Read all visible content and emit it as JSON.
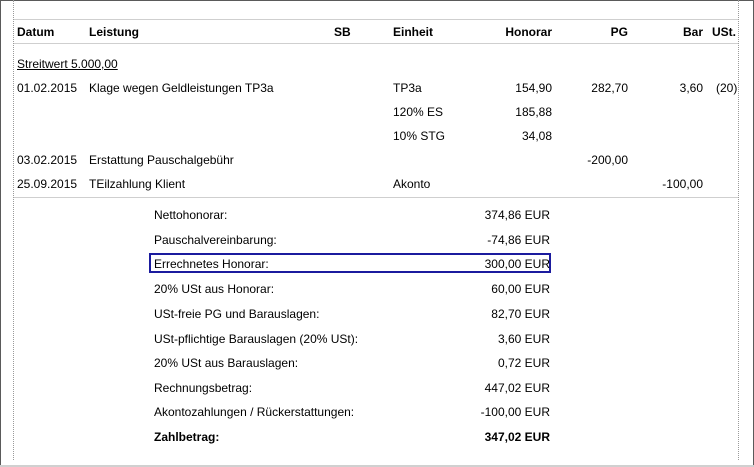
{
  "columns": {
    "datum": "Datum",
    "leistung": "Leistung",
    "sb": "SB",
    "einheit": "Einheit",
    "honorar": "Honorar",
    "pg": "PG",
    "bar": "Bar",
    "ust": "USt."
  },
  "streitwert": "Streitwert 5.000,00",
  "rows": [
    {
      "datum": "01.02.2015",
      "leistung": "Klage wegen Geldleistungen TP3a",
      "einheit": "TP3a",
      "honorar": "154,90",
      "pg": "282,70",
      "bar": "3,60",
      "ust": "(20)"
    },
    {
      "datum": "",
      "leistung": "",
      "einheit": "120% ES",
      "honorar": "185,88",
      "pg": "",
      "bar": "",
      "ust": ""
    },
    {
      "datum": "",
      "leistung": "",
      "einheit": "10% STG",
      "honorar": "34,08",
      "pg": "",
      "bar": "",
      "ust": ""
    },
    {
      "datum": "03.02.2015",
      "leistung": "Erstattung Pauschalgebühr",
      "einheit": "",
      "honorar": "",
      "pg": "-200,00",
      "bar": "",
      "ust": ""
    },
    {
      "datum": "25.09.2015",
      "leistung": "TEilzahlung Klient",
      "einheit": "Akonto",
      "honorar": "",
      "pg": "",
      "bar": "-100,00",
      "ust": ""
    }
  ],
  "summary": [
    {
      "label": "Nettohonorar:",
      "value": "374,86 EUR"
    },
    {
      "label": "Pauschalvereinbarung:",
      "value": "-74,86 EUR"
    },
    {
      "label": "Errechnetes Honorar:",
      "value": "300,00 EUR"
    },
    {
      "label": "20% USt aus Honorar:",
      "value": "60,00 EUR"
    },
    {
      "label": "USt-freie PG und Barauslagen:",
      "value": "82,70 EUR"
    },
    {
      "label": "USt-pflichtige Barauslagen (20% USt):",
      "value": "3,60 EUR"
    },
    {
      "label": "20% USt aus Barauslagen:",
      "value": "0,72 EUR"
    },
    {
      "label": "Rechnungsbetrag:",
      "value": "447,02 EUR"
    },
    {
      "label": "Akontozahlungen / Rückerstattungen:",
      "value": "-100,00 EUR"
    },
    {
      "label": "Zahlbetrag:",
      "value": "347,02 EUR"
    }
  ]
}
